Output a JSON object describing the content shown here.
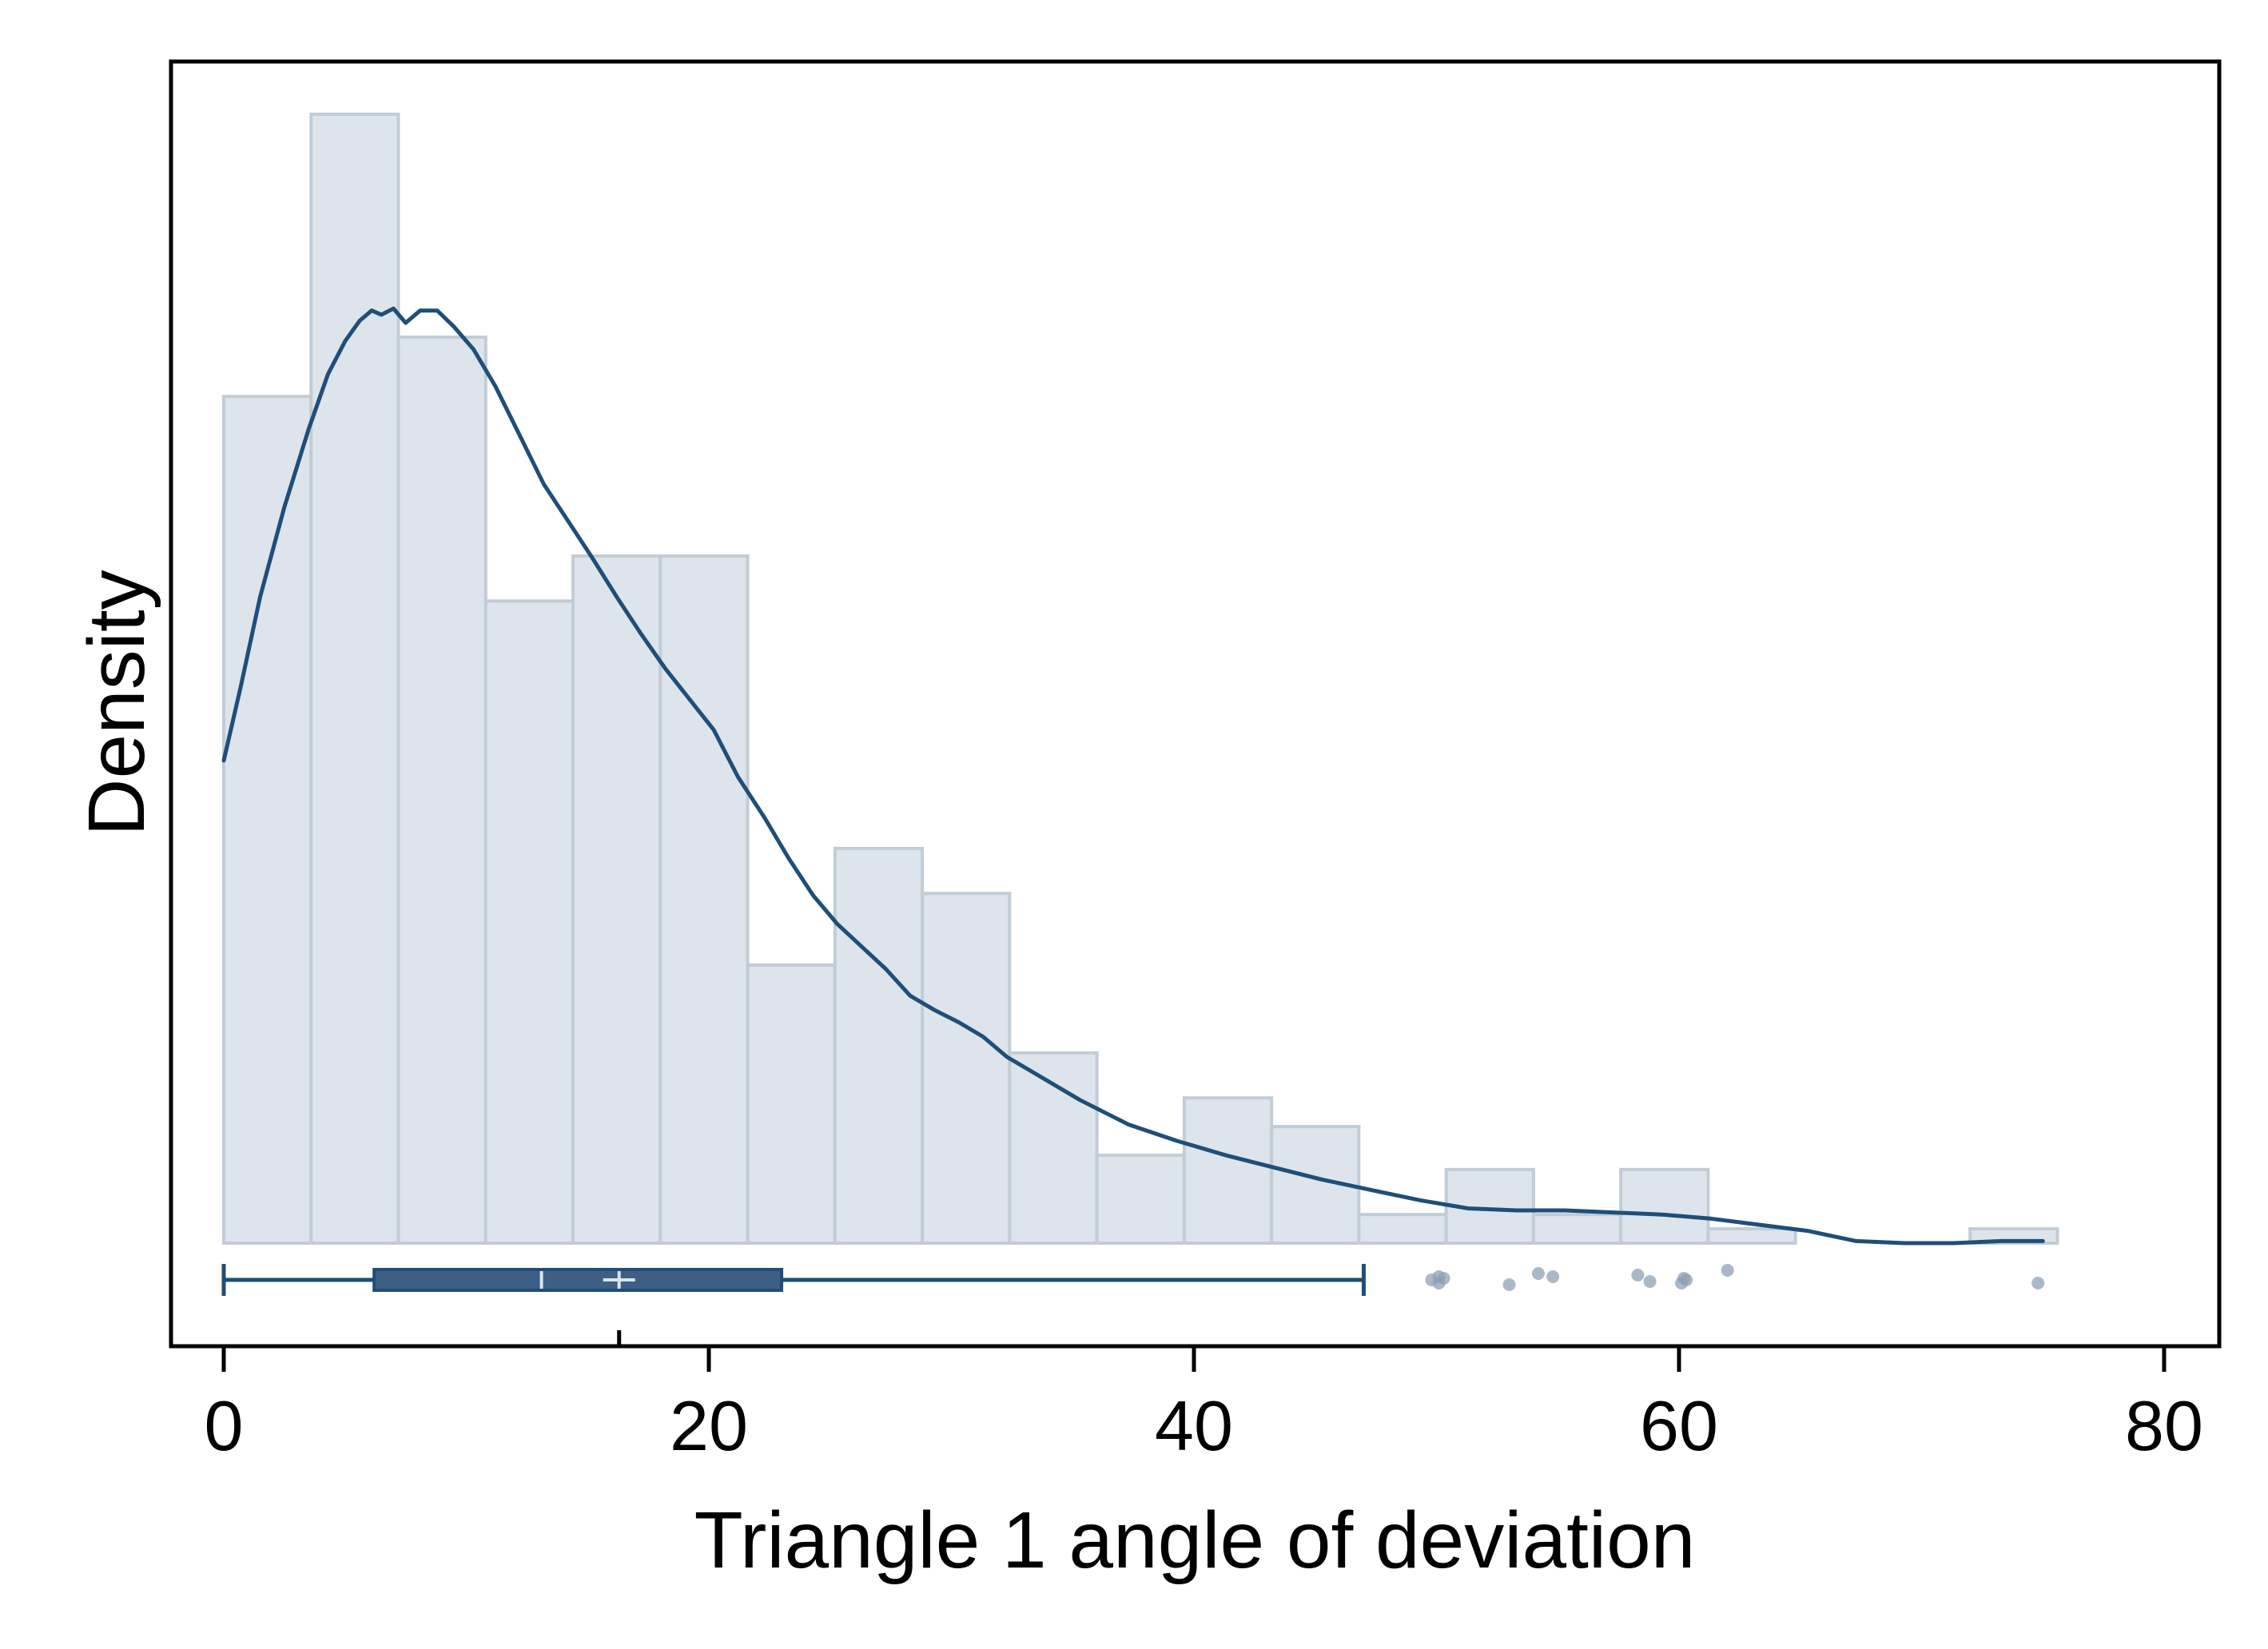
{
  "chart_data": {
    "type": "histogram",
    "title": "",
    "xlabel": "Triangle 1 angle of deviation",
    "ylabel": "Density",
    "xlim": [
      -2.5,
      82
    ],
    "x_ticks": [
      0,
      20,
      40,
      60,
      80
    ],
    "y_ticks": [],
    "grid": false,
    "legend": "none",
    "histogram": {
      "bin_width": 3.6,
      "bins": [
        {
          "start": 0.0,
          "end": 3.6,
          "density": 0.0414
        },
        {
          "start": 3.6,
          "end": 7.2,
          "density": 0.0552
        },
        {
          "start": 7.2,
          "end": 10.8,
          "density": 0.0443
        },
        {
          "start": 10.8,
          "end": 14.4,
          "density": 0.0314
        },
        {
          "start": 14.4,
          "end": 18.0,
          "density": 0.0336
        },
        {
          "start": 18.0,
          "end": 21.6,
          "density": 0.0336
        },
        {
          "start": 21.6,
          "end": 25.2,
          "density": 0.0136
        },
        {
          "start": 25.2,
          "end": 28.8,
          "density": 0.0193
        },
        {
          "start": 28.8,
          "end": 32.4,
          "density": 0.0171
        },
        {
          "start": 32.4,
          "end": 36.0,
          "density": 0.0093
        },
        {
          "start": 36.0,
          "end": 39.6,
          "density": 0.0043
        },
        {
          "start": 39.6,
          "end": 43.2,
          "density": 0.0071
        },
        {
          "start": 43.2,
          "end": 46.8,
          "density": 0.0057
        },
        {
          "start": 46.8,
          "end": 50.4,
          "density": 0.0014
        },
        {
          "start": 50.4,
          "end": 54.0,
          "density": 0.0036
        },
        {
          "start": 54.0,
          "end": 57.6,
          "density": 0.0014
        },
        {
          "start": 57.6,
          "end": 61.2,
          "density": 0.0036
        },
        {
          "start": 61.2,
          "end": 64.8,
          "density": 0.0007
        },
        {
          "start": 64.8,
          "end": 68.4,
          "density": 0.0
        },
        {
          "start": 68.4,
          "end": 72.0,
          "density": 0.0
        },
        {
          "start": 72.0,
          "end": 75.6,
          "density": 0.0007
        }
      ]
    },
    "kde": {
      "x": [
        0,
        0.7,
        1.5,
        2.5,
        3.5,
        4.3,
        5.0,
        5.6,
        6.1,
        6.5,
        7.0,
        7.5,
        8.1,
        8.8,
        9.5,
        10.3,
        11.2,
        12.2,
        13.2,
        14.2,
        15.2,
        16.2,
        17.2,
        18.2,
        19.2,
        20.2,
        21.2,
        22.3,
        23.3,
        24.3,
        25.3,
        26.3,
        27.3,
        28.3,
        29.3,
        30.3,
        31.3,
        32.3,
        33.3,
        35.3,
        37.3,
        39.3,
        41.3,
        43.3,
        45.3,
        47.3,
        49.3,
        51.3,
        53.3,
        55.3,
        57.3,
        59.3,
        61.3,
        63.3,
        65.3,
        67.3,
        69.3,
        71.3,
        73.3,
        75.0
      ],
      "y": [
        0.0236,
        0.0272,
        0.0316,
        0.036,
        0.0398,
        0.0425,
        0.0441,
        0.0451,
        0.0456,
        0.0454,
        0.0457,
        0.045,
        0.0456,
        0.0456,
        0.0448,
        0.0437,
        0.0419,
        0.0395,
        0.0371,
        0.0353,
        0.0335,
        0.0316,
        0.0298,
        0.0281,
        0.0266,
        0.0251,
        0.0228,
        0.0208,
        0.0188,
        0.017,
        0.0156,
        0.0145,
        0.0134,
        0.0121,
        0.0114,
        0.0108,
        0.0101,
        0.0091,
        0.0084,
        0.007,
        0.0058,
        0.005,
        0.0043,
        0.0037,
        0.0031,
        0.0026,
        0.0021,
        0.0017,
        0.0016,
        0.0016,
        0.0015,
        0.0014,
        0.0012,
        0.0009,
        0.0006,
        0.0001,
        0.0,
        0.0,
        0.0001,
        0.0001
      ]
    },
    "boxplot": {
      "whisker_low": 0,
      "q1": 6.2,
      "median": 13.1,
      "mean": 16.3,
      "q3": 23.0,
      "whisker_high": 47.0,
      "outliers": [
        49.8,
        50.1,
        50.3,
        50.1,
        53.0,
        54.2,
        54.8,
        58.3,
        58.8,
        60.2,
        60.3,
        60.1,
        62.0,
        74.8
      ]
    },
    "colors": {
      "bar_fill": "#dde4eb",
      "bar_edge": "#c2ccd6",
      "kde_line": "#1f4e79",
      "box_fill": "#3d5f85",
      "box_line": "#1f4e79",
      "median_mark": "#dde4eb",
      "outlier": "#8ea2b6",
      "frame": "#000000"
    }
  }
}
